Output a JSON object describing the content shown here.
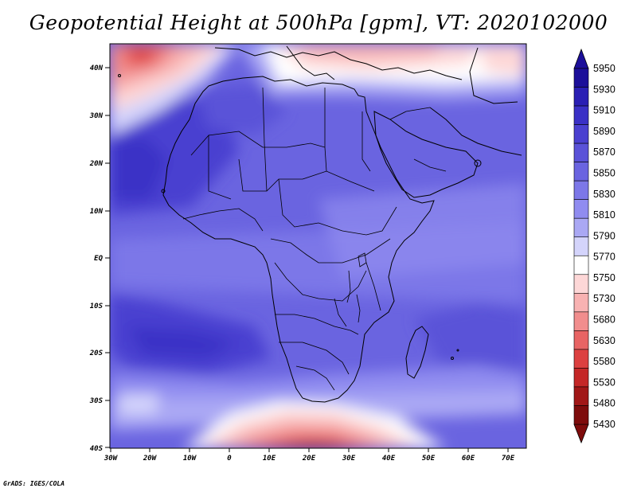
{
  "title": "Geopotential Height at 500hPa [gpm], VT: 2020102000",
  "footer": "GrADS: IGES/COLA",
  "map": {
    "lat_labels": [
      "40N",
      "30N",
      "20N",
      "10N",
      "EQ",
      "10S",
      "20S",
      "30S",
      "40S"
    ],
    "lon_labels": [
      "30W",
      "20W",
      "10W",
      "0",
      "10E",
      "20E",
      "30E",
      "40E",
      "50E",
      "60E",
      "70E"
    ],
    "lon_range": [
      -30,
      75
    ],
    "lat_range": [
      -40,
      45
    ]
  },
  "colorbar": {
    "levels": [
      "5950",
      "5930",
      "5910",
      "5890",
      "5870",
      "5850",
      "5830",
      "5810",
      "5790",
      "5770",
      "5750",
      "5730",
      "5680",
      "5630",
      "5580",
      "5530",
      "5480",
      "5430"
    ],
    "colors": [
      "#1c0f9a",
      "#2a1fb4",
      "#3a30c6",
      "#4a40d0",
      "#5a52d8",
      "#6a64e0",
      "#7c77e8",
      "#908cf0",
      "#aaa8f4",
      "#d4d4fb",
      "#ffffff",
      "#fdd7d7",
      "#f8b2b2",
      "#f18d8d",
      "#e86464",
      "#dc4040",
      "#c42727",
      "#a11717",
      "#7e0c0c"
    ]
  }
}
